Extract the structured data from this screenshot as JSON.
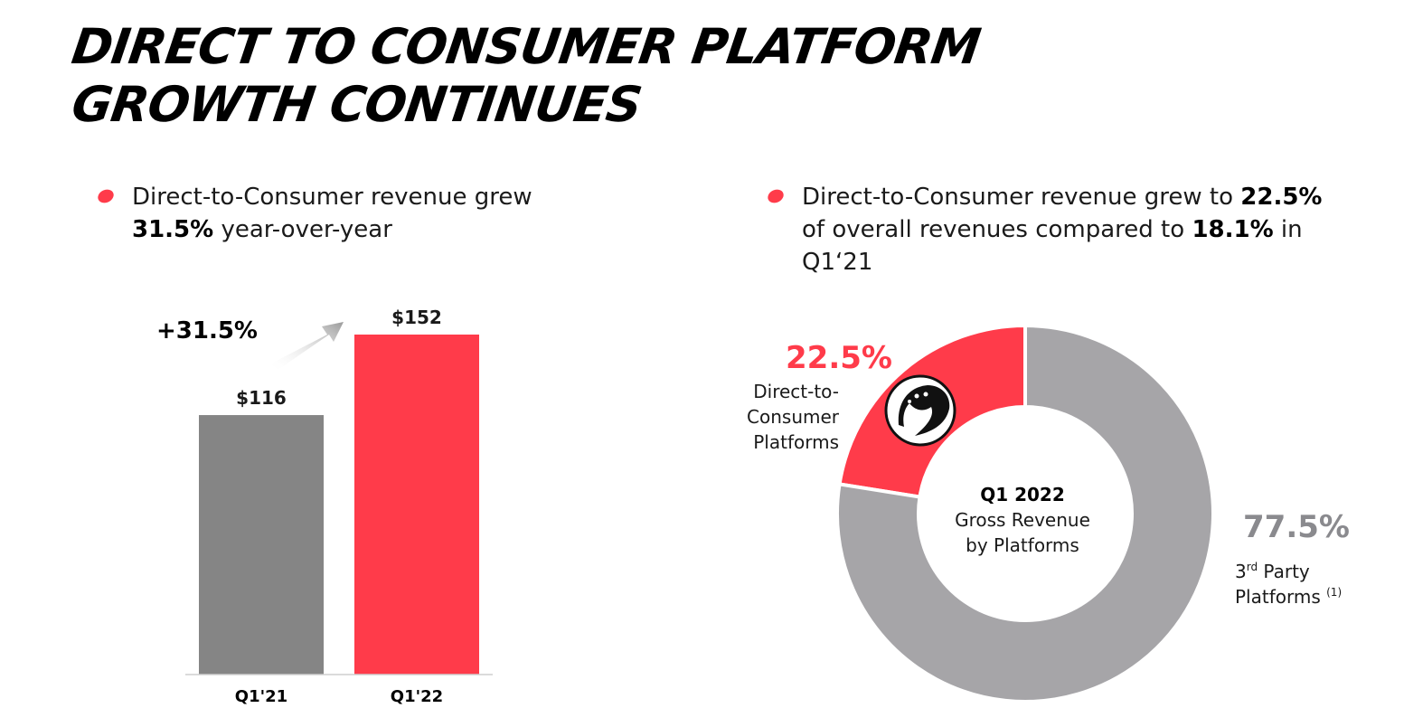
{
  "title": {
    "line1": "DIRECT TO CONSUMER PLATFORM",
    "line2": "GROWTH CONTINUES"
  },
  "bullet_left": {
    "pre": "Direct-to-Consumer revenue grew ",
    "bold": "31.5%",
    "post": " year-over-year"
  },
  "bullet_right": {
    "pre": "Direct-to-Consumer revenue grew to ",
    "bold1": "22.5%",
    "mid": " of overall revenues compared to ",
    "bold2": "18.1%",
    "post": " in Q1‘21"
  },
  "colors": {
    "red": "#ff3b4a",
    "gray_bar": "#858585",
    "gray_donut": "#a6a5a8",
    "gray_pct": "#8a8a8e"
  },
  "chart_data": [
    {
      "type": "bar",
      "categories": [
        "Q1'21",
        "Q1'22"
      ],
      "values": [
        116,
        152
      ],
      "value_labels": [
        "$116",
        "$152"
      ],
      "colors": [
        "#858585",
        "#ff3b4a"
      ],
      "annotation": "+31.5%",
      "ylim": [
        0,
        152
      ]
    },
    {
      "type": "pie",
      "donut": true,
      "center_label": [
        "Q1 2022",
        "Gross Revenue",
        "by Platforms"
      ],
      "slices": [
        {
          "label_lines": [
            "Direct-to-",
            "Consumer",
            "Platforms"
          ],
          "value": 22.5,
          "pct_label": "22.5%",
          "color": "#ff3b4a",
          "icon": "cheetah-logo-icon"
        },
        {
          "label_lines": [
            "3rd Party",
            "Platforms (1)"
          ],
          "label_sup": "rd",
          "footnote": "(1)",
          "value": 77.5,
          "pct_label": "77.5%",
          "color": "#a6a5a8"
        }
      ]
    }
  ]
}
